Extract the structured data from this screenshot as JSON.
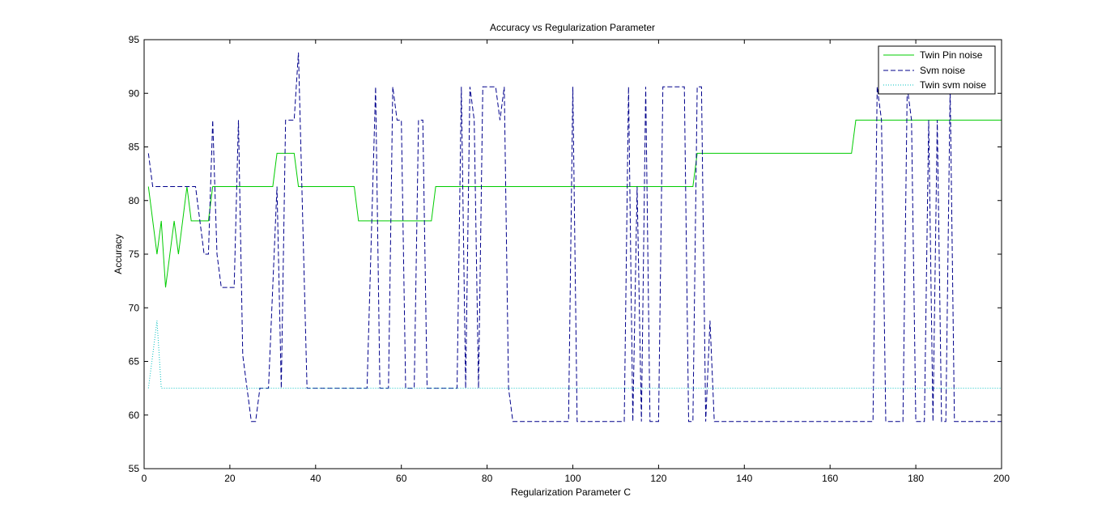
{
  "chart_data": {
    "type": "line",
    "title": "Accuracy vs Regularization Parameter",
    "xlabel": "Regularization Parameter C",
    "ylabel": "Accuracy",
    "xlim": [
      0,
      200
    ],
    "ylim": [
      55,
      95
    ],
    "xticks": [
      0,
      20,
      40,
      60,
      80,
      100,
      120,
      140,
      160,
      180,
      200
    ],
    "yticks": [
      55,
      60,
      65,
      70,
      75,
      80,
      85,
      90,
      95
    ],
    "grid": false,
    "legend_position": "top-right",
    "series": [
      {
        "name": "Twin Pin noise",
        "color": "#00cc00",
        "linestyle": "solid",
        "points": [
          [
            1,
            81.3
          ],
          [
            3,
            75
          ],
          [
            4,
            78.1
          ],
          [
            5,
            71.9
          ],
          [
            7,
            78.1
          ],
          [
            8,
            75
          ],
          [
            10,
            81.3
          ],
          [
            11,
            78.1
          ],
          [
            15,
            78.1
          ],
          [
            16,
            81.3
          ],
          [
            30,
            81.3
          ],
          [
            31,
            84.4
          ],
          [
            35,
            84.4
          ],
          [
            36,
            81.3
          ],
          [
            49,
            81.3
          ],
          [
            50,
            78.1
          ],
          [
            67,
            78.1
          ],
          [
            68,
            81.3
          ],
          [
            128,
            81.3
          ],
          [
            129,
            84.4
          ],
          [
            165,
            84.4
          ],
          [
            166,
            87.5
          ],
          [
            200,
            87.5
          ]
        ]
      },
      {
        "name": "Svm noise",
        "color": "#00008b",
        "linestyle": "dashed",
        "points": [
          [
            1,
            84.4
          ],
          [
            2,
            81.3
          ],
          [
            10,
            81.3
          ],
          [
            12,
            81.3
          ],
          [
            14,
            75
          ],
          [
            15,
            75
          ],
          [
            16,
            87.5
          ],
          [
            17,
            75
          ],
          [
            18,
            71.9
          ],
          [
            21,
            71.9
          ],
          [
            22,
            87.5
          ],
          [
            23,
            65.6
          ],
          [
            25,
            59.4
          ],
          [
            26,
            59.4
          ],
          [
            27,
            62.5
          ],
          [
            29,
            62.5
          ],
          [
            31,
            81.3
          ],
          [
            32,
            62.5
          ],
          [
            33,
            87.5
          ],
          [
            35,
            87.5
          ],
          [
            36,
            93.8
          ],
          [
            38,
            62.5
          ],
          [
            52,
            62.5
          ],
          [
            54,
            90.6
          ],
          [
            55,
            62.5
          ],
          [
            57,
            62.5
          ],
          [
            58,
            90.6
          ],
          [
            59,
            87.5
          ],
          [
            60,
            87.5
          ],
          [
            61,
            62.5
          ],
          [
            63,
            62.5
          ],
          [
            64,
            87.5
          ],
          [
            65,
            87.5
          ],
          [
            66,
            62.5
          ],
          [
            73,
            62.5
          ],
          [
            74,
            90.6
          ],
          [
            75,
            62.5
          ],
          [
            76,
            90.6
          ],
          [
            77,
            87.5
          ],
          [
            78,
            62.5
          ],
          [
            79,
            90.6
          ],
          [
            82,
            90.6
          ],
          [
            83,
            87.5
          ],
          [
            84,
            90.6
          ],
          [
            85,
            62.5
          ],
          [
            86,
            59.4
          ],
          [
            99,
            59.4
          ],
          [
            100,
            90.6
          ],
          [
            101,
            59.4
          ],
          [
            112,
            59.4
          ],
          [
            113,
            90.6
          ],
          [
            114,
            59.4
          ],
          [
            115,
            81.3
          ],
          [
            116,
            59.4
          ],
          [
            117,
            90.6
          ],
          [
            118,
            59.4
          ],
          [
            120,
            59.4
          ],
          [
            121,
            90.6
          ],
          [
            126,
            90.6
          ],
          [
            127,
            59.4
          ],
          [
            128,
            59.4
          ],
          [
            129,
            90.6
          ],
          [
            130,
            90.6
          ],
          [
            131,
            59.4
          ],
          [
            132,
            68.8
          ],
          [
            133,
            59.4
          ],
          [
            170,
            59.4
          ],
          [
            171,
            90.6
          ],
          [
            172,
            87.5
          ],
          [
            173,
            59.4
          ],
          [
            177,
            59.4
          ],
          [
            178,
            90.6
          ],
          [
            179,
            87.5
          ],
          [
            180,
            59.4
          ],
          [
            182,
            59.4
          ],
          [
            183,
            87.5
          ],
          [
            184,
            59.4
          ],
          [
            185,
            87.5
          ],
          [
            186,
            59.4
          ],
          [
            187,
            59.4
          ],
          [
            188,
            90.6
          ],
          [
            189,
            59.4
          ],
          [
            200,
            59.4
          ]
        ]
      },
      {
        "name": "Twin svm noise",
        "color": "#00bfbf",
        "linestyle": "dotted",
        "points": [
          [
            1,
            62.5
          ],
          [
            2,
            65.6
          ],
          [
            3,
            68.8
          ],
          [
            4,
            62.5
          ],
          [
            200,
            62.5
          ]
        ]
      }
    ]
  }
}
